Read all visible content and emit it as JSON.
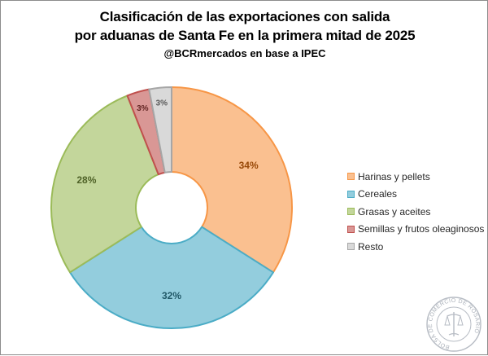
{
  "title": {
    "line1": "Clasificación de las exportaciones con salida",
    "line2": "por aduanas de Santa Fe en la primera mitad de 2025",
    "subtitle": "@BCRmercados en base a IPEC"
  },
  "chart_data": {
    "type": "pie",
    "donut": true,
    "start_angle_deg": 0,
    "direction": "clockwise",
    "slices": [
      {
        "name": "Harinas y pellets",
        "value": 34,
        "label": "34%",
        "fill": "#fac090",
        "stroke": "#f79646",
        "label_color": "#984807"
      },
      {
        "name": "Cereales",
        "value": 32,
        "label": "32%",
        "fill": "#93cddd",
        "stroke": "#4bacc6",
        "label_color": "#215968"
      },
      {
        "name": "Grasas y aceites",
        "value": 28,
        "label": "28%",
        "fill": "#c3d69b",
        "stroke": "#9bbb59",
        "label_color": "#4f6228"
      },
      {
        "name": "Semillas y frutos oleaginosos",
        "value": 3,
        "label": "3%",
        "fill": "#d99795",
        "stroke": "#c0504d",
        "label_color": "#632523"
      },
      {
        "name": "Resto",
        "value": 3,
        "label": "3%",
        "fill": "#d9d9d9",
        "stroke": "#a6a6a6",
        "label_color": "#595959"
      }
    ],
    "legend_position": "right"
  },
  "watermark": {
    "text": "BOLSA DE COMERCIO DE ROSARIO"
  }
}
